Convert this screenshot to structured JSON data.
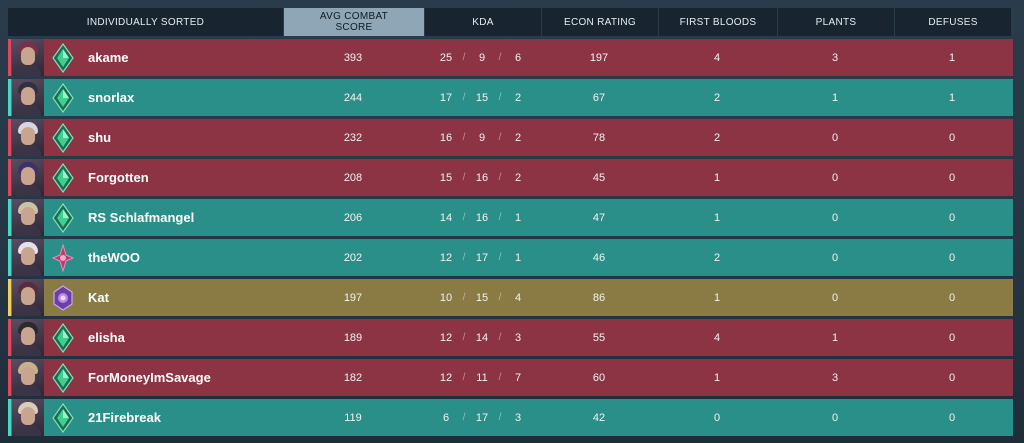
{
  "headers": {
    "player": "INDIVIDUALLY SORTED",
    "acs_line1": "AVG COMBAT",
    "acs_line2": "SCORE",
    "kda": "KDA",
    "econ": "ECON RATING",
    "first_bloods": "FIRST BLOODS",
    "plants": "PLANTS",
    "defuses": "DEFUSES"
  },
  "colors": {
    "enemy": "#8c3344",
    "ally": "#2a8f88",
    "self": "#8a7a44"
  },
  "rows": [
    {
      "name": "akame",
      "team": "red",
      "rank_icon": "emerald-rank-icon",
      "acs": "393",
      "k": "25",
      "d": "9",
      "a": "6",
      "econ": "197",
      "fb": "4",
      "plants": "3",
      "defuses": "1"
    },
    {
      "name": "snorlax",
      "team": "teal",
      "rank_icon": "emerald-rank-icon",
      "acs": "244",
      "k": "17",
      "d": "15",
      "a": "2",
      "econ": "67",
      "fb": "2",
      "plants": "1",
      "defuses": "1"
    },
    {
      "name": "shu",
      "team": "red",
      "rank_icon": "emerald-rank-icon",
      "acs": "232",
      "k": "16",
      "d": "9",
      "a": "2",
      "econ": "78",
      "fb": "2",
      "plants": "0",
      "defuses": "0"
    },
    {
      "name": "Forgotten",
      "team": "red",
      "rank_icon": "emerald-rank-icon",
      "acs": "208",
      "k": "15",
      "d": "16",
      "a": "2",
      "econ": "45",
      "fb": "1",
      "plants": "0",
      "defuses": "0"
    },
    {
      "name": "RS Schlafmangel",
      "team": "teal",
      "rank_icon": "emerald-rank-icon",
      "acs": "206",
      "k": "14",
      "d": "16",
      "a": "1",
      "econ": "47",
      "fb": "1",
      "plants": "0",
      "defuses": "0"
    },
    {
      "name": "theWOO",
      "team": "teal",
      "rank_icon": "pink-rank-icon",
      "acs": "202",
      "k": "12",
      "d": "17",
      "a": "1",
      "econ": "46",
      "fb": "2",
      "plants": "0",
      "defuses": "0"
    },
    {
      "name": "Kat",
      "team": "gold",
      "rank_icon": "purple-rank-icon",
      "acs": "197",
      "k": "10",
      "d": "15",
      "a": "4",
      "econ": "86",
      "fb": "1",
      "plants": "0",
      "defuses": "0"
    },
    {
      "name": "elisha",
      "team": "red",
      "rank_icon": "emerald-rank-icon",
      "acs": "189",
      "k": "12",
      "d": "14",
      "a": "3",
      "econ": "55",
      "fb": "4",
      "plants": "1",
      "defuses": "0"
    },
    {
      "name": "ForMoneyImSavage",
      "team": "red",
      "rank_icon": "emerald-rank-icon",
      "acs": "182",
      "k": "12",
      "d": "11",
      "a": "7",
      "econ": "60",
      "fb": "1",
      "plants": "3",
      "defuses": "0"
    },
    {
      "name": "21Firebreak",
      "team": "teal",
      "rank_icon": "emerald-rank-icon",
      "acs": "119",
      "k": "6",
      "d": "17",
      "a": "3",
      "econ": "42",
      "fb": "0",
      "plants": "0",
      "defuses": "0"
    }
  ]
}
